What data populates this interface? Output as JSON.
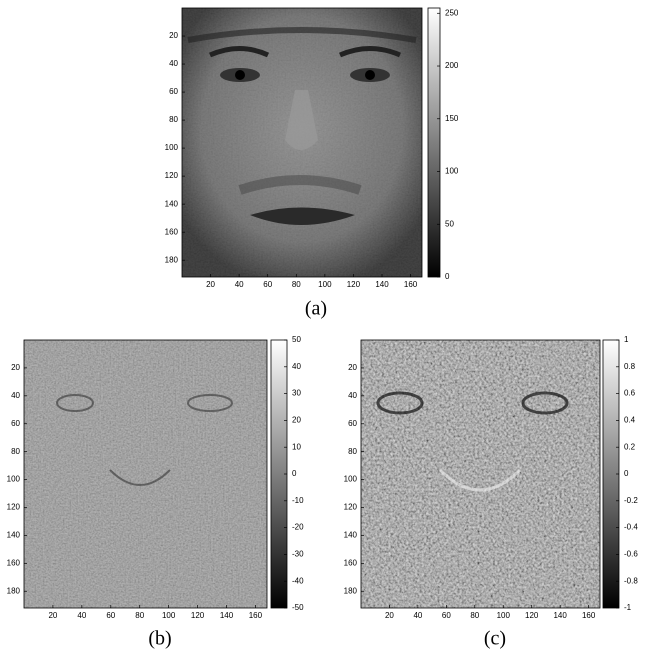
{
  "panels": [
    {
      "caption": "(a)",
      "xlim": [
        0,
        168
      ],
      "ylim": [
        0,
        192
      ],
      "xticks": [
        20,
        40,
        60,
        80,
        100,
        120,
        140,
        160
      ],
      "yticks": [
        20,
        40,
        60,
        80,
        100,
        120,
        140,
        160,
        180
      ],
      "colorbar_lim": [
        0,
        255
      ],
      "colorbar_ticks": [
        0,
        50,
        100,
        150,
        200,
        250
      ]
    },
    {
      "caption": "(b)",
      "xlim": [
        0,
        168
      ],
      "ylim": [
        0,
        192
      ],
      "xticks": [
        20,
        40,
        60,
        80,
        100,
        120,
        140,
        160
      ],
      "yticks": [
        20,
        40,
        60,
        80,
        100,
        120,
        140,
        160,
        180
      ],
      "colorbar_lim": [
        -50,
        50
      ],
      "colorbar_ticks": [
        -50,
        -40,
        -30,
        -20,
        -10,
        0,
        10,
        20,
        30,
        40,
        50
      ]
    },
    {
      "caption": "(c)",
      "xlim": [
        0,
        168
      ],
      "ylim": [
        0,
        192
      ],
      "xticks": [
        20,
        40,
        60,
        80,
        100,
        120,
        140,
        160
      ],
      "yticks": [
        20,
        40,
        60,
        80,
        100,
        120,
        140,
        160,
        180
      ],
      "colorbar_lim": [
        -1,
        1
      ],
      "colorbar_ticks": [
        -1,
        -0.8,
        -0.6,
        -0.4,
        -0.2,
        0,
        0.2,
        0.4,
        0.6,
        0.8,
        1
      ]
    }
  ]
}
